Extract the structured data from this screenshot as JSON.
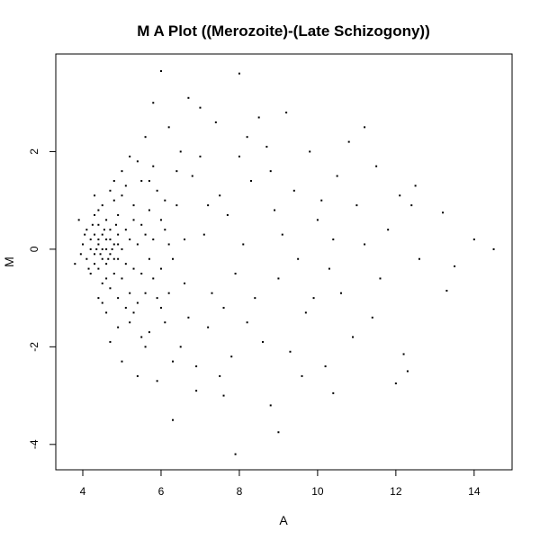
{
  "chart_data": {
    "type": "scatter",
    "title": "M A Plot ((Merozoite)-(Late Schizogony))",
    "xlabel": "A",
    "ylabel": "M",
    "xlim": [
      3.31,
      14.97
    ],
    "ylim": [
      -4.52,
      4.0
    ],
    "xticks": [
      4,
      6,
      8,
      10,
      12,
      14
    ],
    "yticks": [
      -4,
      -2,
      0,
      2
    ],
    "grid": false,
    "point_color": "#000000",
    "points": [
      [
        6.0,
        3.65
      ],
      [
        8.0,
        3.6
      ],
      [
        14.5,
        0.0
      ],
      [
        14.0,
        0.2
      ],
      [
        13.5,
        -0.35
      ],
      [
        13.2,
        0.75
      ],
      [
        13.3,
        -0.85
      ],
      [
        7.9,
        -4.2
      ],
      [
        6.7,
        3.1
      ],
      [
        5.8,
        3.0
      ],
      [
        12.3,
        -2.5
      ],
      [
        12.2,
        -2.15
      ],
      [
        12.0,
        -2.75
      ],
      [
        10.4,
        -2.95
      ],
      [
        6.3,
        -3.5
      ],
      [
        9.0,
        -3.75
      ],
      [
        11.2,
        2.5
      ],
      [
        12.5,
        1.3
      ],
      [
        12.4,
        0.9
      ],
      [
        3.8,
        -0.3
      ],
      [
        3.9,
        0.6
      ],
      [
        7.0,
        2.9
      ],
      [
        8.5,
        2.7
      ],
      [
        9.2,
        2.8
      ],
      [
        10.8,
        2.2
      ],
      [
        11.5,
        1.7
      ],
      [
        12.1,
        1.1
      ],
      [
        11.8,
        0.4
      ],
      [
        12.6,
        -0.2
      ],
      [
        11.4,
        -1.4
      ],
      [
        10.9,
        -1.8
      ],
      [
        10.2,
        -2.4
      ],
      [
        9.6,
        -2.6
      ],
      [
        8.8,
        -3.2
      ],
      [
        7.6,
        -3.0
      ],
      [
        6.9,
        -2.9
      ],
      [
        5.9,
        -2.7
      ],
      [
        5.4,
        -2.6
      ],
      [
        5.0,
        -2.3
      ],
      [
        4.7,
        -1.9
      ],
      [
        5.2,
        1.9
      ],
      [
        5.6,
        2.3
      ],
      [
        6.2,
        2.5
      ],
      [
        7.4,
        2.6
      ],
      [
        8.2,
        2.3
      ],
      [
        9.8,
        2.0
      ],
      [
        10.5,
        1.5
      ],
      [
        11.0,
        0.9
      ],
      [
        10.0,
        0.6
      ],
      [
        9.4,
        1.2
      ],
      [
        9.0,
        -0.6
      ],
      [
        9.7,
        -1.3
      ],
      [
        10.3,
        -0.4
      ],
      [
        11.2,
        0.1
      ],
      [
        8.6,
        -1.9
      ],
      [
        7.8,
        -2.2
      ],
      [
        7.2,
        -1.6
      ],
      [
        6.5,
        -2.0
      ],
      [
        6.0,
        -1.2
      ],
      [
        5.7,
        -1.7
      ],
      [
        6.8,
        1.5
      ],
      [
        7.5,
        1.1
      ],
      [
        8.3,
        1.4
      ],
      [
        8.9,
        0.8
      ],
      [
        7.1,
        0.3
      ],
      [
        7.9,
        -0.5
      ],
      [
        8.4,
        -1.0
      ],
      [
        6.4,
        0.9
      ],
      [
        6.6,
        -0.7
      ],
      [
        5.9,
        1.2
      ],
      [
        5.5,
        1.4
      ],
      [
        5.3,
        0.9
      ],
      [
        5.1,
        -1.2
      ],
      [
        5.6,
        -0.9
      ],
      [
        6.1,
        0.4
      ],
      [
        6.3,
        -0.2
      ],
      [
        7.3,
        -0.9
      ],
      [
        7.7,
        0.7
      ],
      [
        8.1,
        0.1
      ],
      [
        9.1,
        0.3
      ],
      [
        4.0,
        0.1
      ],
      [
        4.1,
        -0.2
      ],
      [
        4.1,
        0.4
      ],
      [
        4.2,
        0.0
      ],
      [
        4.2,
        -0.5
      ],
      [
        4.3,
        0.3
      ],
      [
        4.3,
        -0.1
      ],
      [
        4.3,
        0.7
      ],
      [
        4.4,
        0.1
      ],
      [
        4.4,
        -0.4
      ],
      [
        4.4,
        0.5
      ],
      [
        4.5,
        0.0
      ],
      [
        4.5,
        -0.7
      ],
      [
        4.5,
        0.9
      ],
      [
        4.6,
        0.2
      ],
      [
        4.6,
        -0.3
      ],
      [
        4.6,
        0.6
      ],
      [
        4.7,
        -0.1
      ],
      [
        4.7,
        0.4
      ],
      [
        4.7,
        -0.8
      ],
      [
        4.8,
        0.1
      ],
      [
        4.8,
        -0.5
      ],
      [
        4.8,
        1.0
      ],
      [
        4.9,
        0.3
      ],
      [
        4.9,
        -0.2
      ],
      [
        4.9,
        0.7
      ],
      [
        5.0,
        0.0
      ],
      [
        5.0,
        -0.6
      ],
      [
        5.0,
        1.1
      ],
      [
        5.1,
        0.4
      ],
      [
        5.1,
        -0.3
      ],
      [
        5.2,
        0.2
      ],
      [
        5.2,
        -0.9
      ],
      [
        5.3,
        0.6
      ],
      [
        5.3,
        -0.4
      ],
      [
        5.4,
        0.1
      ],
      [
        5.4,
        -1.1
      ],
      [
        5.5,
        0.5
      ],
      [
        5.5,
        -0.5
      ],
      [
        5.6,
        0.3
      ],
      [
        5.7,
        -0.2
      ],
      [
        5.7,
        0.8
      ],
      [
        5.8,
        -0.6
      ],
      [
        5.8,
        0.2
      ],
      [
        5.9,
        -1.0
      ],
      [
        6.0,
        0.6
      ],
      [
        6.0,
        -0.4
      ],
      [
        6.1,
        1.0
      ],
      [
        6.2,
        -0.9
      ],
      [
        6.2,
        0.1
      ],
      [
        4.2,
        0.2
      ],
      [
        4.3,
        -0.3
      ],
      [
        4.4,
        0.2
      ],
      [
        4.5,
        0.3
      ],
      [
        4.5,
        -0.2
      ],
      [
        4.6,
        0.0
      ],
      [
        4.6,
        -0.6
      ],
      [
        4.7,
        0.2
      ],
      [
        4.8,
        -0.2
      ],
      [
        4.9,
        0.1
      ],
      [
        4.3,
        1.1
      ],
      [
        4.4,
        -1.0
      ],
      [
        4.6,
        -1.3
      ],
      [
        4.8,
        1.4
      ],
      [
        5.0,
        1.6
      ],
      [
        5.2,
        -1.5
      ],
      [
        4.9,
        -1.6
      ],
      [
        5.4,
        1.8
      ],
      [
        5.6,
        -2.0
      ],
      [
        5.8,
        1.7
      ],
      [
        6.5,
        2.0
      ],
      [
        6.9,
        -2.4
      ],
      [
        7.5,
        -2.6
      ],
      [
        8.0,
        1.9
      ],
      [
        8.7,
        2.1
      ],
      [
        9.3,
        -2.1
      ],
      [
        9.9,
        -1.0
      ],
      [
        10.6,
        -0.9
      ],
      [
        10.1,
        1.0
      ],
      [
        11.6,
        -0.6
      ],
      [
        6.7,
        -1.4
      ],
      [
        7.0,
        1.9
      ],
      [
        7.6,
        -1.2
      ],
      [
        8.2,
        -1.5
      ],
      [
        8.8,
        1.6
      ],
      [
        9.5,
        -0.2
      ],
      [
        10.4,
        0.2
      ],
      [
        6.4,
        1.6
      ],
      [
        6.6,
        0.2
      ],
      [
        7.2,
        0.9
      ],
      [
        4.4,
        0.8
      ],
      [
        4.5,
        -1.1
      ],
      [
        4.7,
        1.2
      ],
      [
        4.9,
        -1.0
      ],
      [
        5.1,
        1.3
      ],
      [
        5.3,
        -1.3
      ],
      [
        5.5,
        -1.8
      ],
      [
        5.7,
        1.4
      ],
      [
        6.1,
        -1.5
      ],
      [
        6.3,
        -2.3
      ],
      [
        3.95,
        -0.1
      ],
      [
        4.05,
        0.3
      ],
      [
        4.15,
        -0.4
      ],
      [
        4.25,
        0.5
      ],
      [
        4.35,
        0.0
      ],
      [
        4.45,
        -0.1
      ],
      [
        4.55,
        0.4
      ],
      [
        4.65,
        -0.2
      ],
      [
        4.75,
        0.0
      ],
      [
        4.85,
        0.5
      ]
    ]
  }
}
